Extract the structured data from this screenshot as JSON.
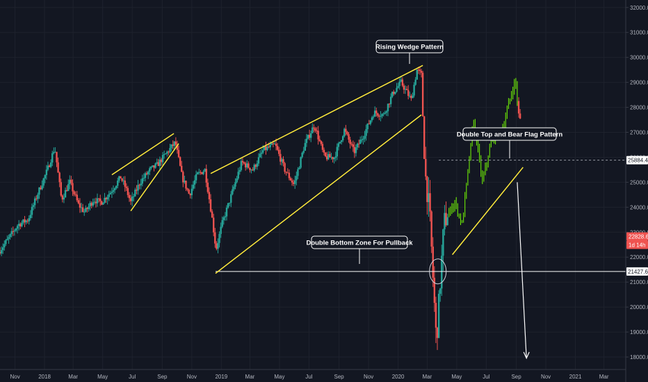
{
  "chart_data": {
    "type": "candlestick",
    "y_axis": {
      "position": "right",
      "range": [
        17500,
        32300
      ],
      "ticks": [
        18000,
        19000,
        20000,
        21000,
        22000,
        23000,
        24000,
        25000,
        26000,
        27000,
        28000,
        29000,
        30000,
        31000,
        32000
      ],
      "tick_labels": [
        "18000.0",
        "19000.0",
        "20000.0",
        "21000.0",
        "22000.0",
        "23000.0",
        "24000.0",
        "25000.0",
        "26000.0",
        "27000.0",
        "28000.0",
        "29000.0",
        "30000.0",
        "31000.0",
        "32000.0"
      ]
    },
    "x_axis": {
      "range": [
        "2017-10-01",
        "2021-04-15"
      ],
      "ticks": [
        {
          "date": "2017-11-01",
          "label": "Nov"
        },
        {
          "date": "2018-01-01",
          "label": "2018"
        },
        {
          "date": "2018-03-01",
          "label": "Mar"
        },
        {
          "date": "2018-05-01",
          "label": "May"
        },
        {
          "date": "2018-07-01",
          "label": "Jul"
        },
        {
          "date": "2018-09-01",
          "label": "Sep"
        },
        {
          "date": "2018-11-01",
          "label": "Nov"
        },
        {
          "date": "2019-01-01",
          "label": "2019"
        },
        {
          "date": "2019-03-01",
          "label": "Mar"
        },
        {
          "date": "2019-05-01",
          "label": "May"
        },
        {
          "date": "2019-07-01",
          "label": "Jul"
        },
        {
          "date": "2019-09-01",
          "label": "Sep"
        },
        {
          "date": "2019-11-01",
          "label": "Nov"
        },
        {
          "date": "2020-01-01",
          "label": "2020"
        },
        {
          "date": "2020-03-01",
          "label": "Mar"
        },
        {
          "date": "2020-05-01",
          "label": "May"
        },
        {
          "date": "2020-07-01",
          "label": "Jul"
        },
        {
          "date": "2020-09-01",
          "label": "Sep"
        },
        {
          "date": "2020-11-01",
          "label": "Nov"
        },
        {
          "date": "2021-01-01",
          "label": "2021"
        },
        {
          "date": "2021-03-01",
          "label": "Mar"
        }
      ]
    },
    "price_path": [
      [
        "2017-10-01",
        22200
      ],
      [
        "2017-10-20",
        22700
      ],
      [
        "2017-11-10",
        23300
      ],
      [
        "2017-12-01",
        23500
      ],
      [
        "2017-12-20",
        24500
      ],
      [
        "2018-01-10",
        25500
      ],
      [
        "2018-01-25",
        26400
      ],
      [
        "2018-02-08",
        24300
      ],
      [
        "2018-02-25",
        25000
      ],
      [
        "2018-03-15",
        24100
      ],
      [
        "2018-03-28",
        23800
      ],
      [
        "2018-04-15",
        24300
      ],
      [
        "2018-05-01",
        24200
      ],
      [
        "2018-05-20",
        24600
      ],
      [
        "2018-06-10",
        25200
      ],
      [
        "2018-06-20",
        24800
      ],
      [
        "2018-07-01",
        24200
      ],
      [
        "2018-07-20",
        25000
      ],
      [
        "2018-08-10",
        25500
      ],
      [
        "2018-08-25",
        25700
      ],
      [
        "2018-09-10",
        26100
      ],
      [
        "2018-10-01",
        26600
      ],
      [
        "2018-10-15",
        25200
      ],
      [
        "2018-10-30",
        24500
      ],
      [
        "2018-11-15",
        25300
      ],
      [
        "2018-12-01",
        25500
      ],
      [
        "2018-12-15",
        23700
      ],
      [
        "2018-12-24",
        22300
      ],
      [
        "2019-01-05",
        23300
      ],
      [
        "2019-01-25",
        24500
      ],
      [
        "2019-02-15",
        25800
      ],
      [
        "2019-03-10",
        25500
      ],
      [
        "2019-04-01",
        26300
      ],
      [
        "2019-04-25",
        26500
      ],
      [
        "2019-05-15",
        25500
      ],
      [
        "2019-06-03",
        24900
      ],
      [
        "2019-06-25",
        26500
      ],
      [
        "2019-07-15",
        27300
      ],
      [
        "2019-08-05",
        26000
      ],
      [
        "2019-08-25",
        26000
      ],
      [
        "2019-09-15",
        27100
      ],
      [
        "2019-10-05",
        26200
      ],
      [
        "2019-10-25",
        26900
      ],
      [
        "2019-11-15",
        27800
      ],
      [
        "2019-12-05",
        27700
      ],
      [
        "2019-12-25",
        28600
      ],
      [
        "2020-01-10",
        29000
      ],
      [
        "2020-01-31",
        28300
      ],
      [
        "2020-02-12",
        29500
      ],
      [
        "2020-02-21",
        29300
      ],
      [
        "2020-02-28",
        25500
      ],
      [
        "2020-03-09",
        23800
      ],
      [
        "2020-03-23",
        18600
      ],
      [
        "2020-04-08",
        23400
      ],
      [
        "2020-04-30",
        24200
      ],
      [
        "2020-05-15",
        23300
      ],
      [
        "2020-06-08",
        27500
      ],
      [
        "2020-06-26",
        25000
      ],
      [
        "2020-07-15",
        26700
      ],
      [
        "2020-08-05",
        27000
      ],
      [
        "2020-08-20",
        28200
      ],
      [
        "2020-09-02",
        29100
      ],
      [
        "2020-09-10",
        27500
      ]
    ],
    "last_price": 25884.4,
    "horizontal_levels": [
      {
        "price": 21427.6,
        "label": "21427.6",
        "style": "solid",
        "color": "#ffffff"
      },
      {
        "price": 25884.4,
        "label": "25884.4",
        "style": "dashed",
        "color": "#9598a1"
      }
    ],
    "price_tags": [
      {
        "label": "22828.6",
        "color": "#ef5350"
      },
      {
        "label": "1d 14h",
        "color": "#ef5350"
      }
    ],
    "trendlines_color": "#ffeb3b",
    "annotations": [
      {
        "text": "Rising Wedge Pattern"
      },
      {
        "text": "Double Top and Bear Flag Pattern"
      },
      {
        "text": "Double Bottom Zone For Pullback"
      }
    ],
    "colors": {
      "up": "#26a69a",
      "down": "#ef5350",
      "highlight": "#76ff03",
      "background": "#131722",
      "grid": "#1e222d"
    }
  }
}
